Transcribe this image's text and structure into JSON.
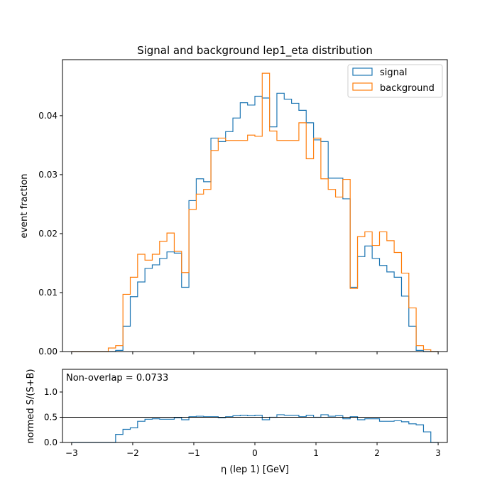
{
  "chart_data": [
    {
      "type": "histogram-step",
      "title": "Signal and background lep1_eta distribution",
      "ylabel": "event fraction",
      "xlim": [
        -3.15,
        3.15
      ],
      "ylim": [
        0,
        0.0495
      ],
      "bin_edges_range": [
        -3.0,
        3.0
      ],
      "bin_width": 0.12,
      "yticks": [
        0.0,
        0.01,
        0.02,
        0.03,
        0.04
      ],
      "ytick_labels": [
        "0.00",
        "0.01",
        "0.02",
        "0.03",
        "0.04"
      ],
      "legend": {
        "position": "top-right",
        "entries": [
          "signal",
          "background"
        ]
      },
      "colors": {
        "signal": "#1f77b4",
        "background": "#ff7f0e"
      },
      "series": [
        {
          "name": "signal",
          "values": [
            0,
            0,
            0,
            0,
            0,
            0,
            0.0002,
            0.0043,
            0.0093,
            0.0118,
            0.0141,
            0.0147,
            0.0158,
            0.0169,
            0.0167,
            0.0109,
            0.0256,
            0.0293,
            0.0288,
            0.0362,
            0.0356,
            0.0373,
            0.0396,
            0.0422,
            0.0418,
            0.0433,
            0.043,
            0.0381,
            0.0438,
            0.0428,
            0.0421,
            0.0409,
            0.0388,
            0.0359,
            0.0356,
            0.0294,
            0.0294,
            0.0259,
            0.0109,
            0.0161,
            0.0179,
            0.0158,
            0.0146,
            0.0135,
            0.0126,
            0.0094,
            0.0043,
            0.0002,
            0,
            0
          ]
        },
        {
          "name": "background",
          "values": [
            0,
            0,
            0,
            0,
            0,
            0.0006,
            0.001,
            0.0097,
            0.0126,
            0.0165,
            0.0155,
            0.0165,
            0.0187,
            0.0201,
            0.017,
            0.0134,
            0.0241,
            0.0267,
            0.0275,
            0.0341,
            0.0362,
            0.0358,
            0.0358,
            0.0358,
            0.0367,
            0.0365,
            0.0472,
            0.0374,
            0.0358,
            0.0358,
            0.0358,
            0.0388,
            0.0327,
            0.0362,
            0.0293,
            0.0275,
            0.0262,
            0.0292,
            0.0107,
            0.0195,
            0.0203,
            0.018,
            0.0203,
            0.0188,
            0.0168,
            0.0133,
            0.0074,
            0.001,
            0.0003,
            0
          ]
        }
      ]
    },
    {
      "type": "histogram-step",
      "annotation": "Non-overlap = 0.0733",
      "xlabel": "η (lep 1) [GeV]",
      "ylabel": "normed S/(S+B)",
      "xlim": [
        -3.15,
        3.15
      ],
      "ylim": [
        0,
        1.45
      ],
      "xticks": [
        -3,
        -2,
        -1,
        0,
        1,
        2,
        3
      ],
      "xtick_labels": [
        "−3",
        "−2",
        "−1",
        "0",
        "1",
        "2",
        "3"
      ],
      "yticks": [
        0.0,
        0.5,
        1.0
      ],
      "ytick_labels": [
        "0.0",
        "0.5",
        "1.0"
      ],
      "reference_line": 0.5,
      "series": [
        {
          "name": "ratio",
          "values": [
            0,
            0,
            0,
            0,
            0,
            0,
            0.16,
            0.26,
            0.29,
            0.42,
            0.46,
            0.47,
            0.46,
            0.46,
            0.49,
            0.45,
            0.51,
            0.52,
            0.51,
            0.51,
            0.49,
            0.51,
            0.53,
            0.54,
            0.53,
            0.54,
            0.45,
            0.5,
            0.55,
            0.54,
            0.54,
            0.51,
            0.54,
            0.5,
            0.55,
            0.52,
            0.53,
            0.47,
            0.51,
            0.45,
            0.47,
            0.47,
            0.42,
            0.42,
            0.43,
            0.41,
            0.37,
            0.35,
            0.21,
            0
          ]
        }
      ]
    }
  ]
}
